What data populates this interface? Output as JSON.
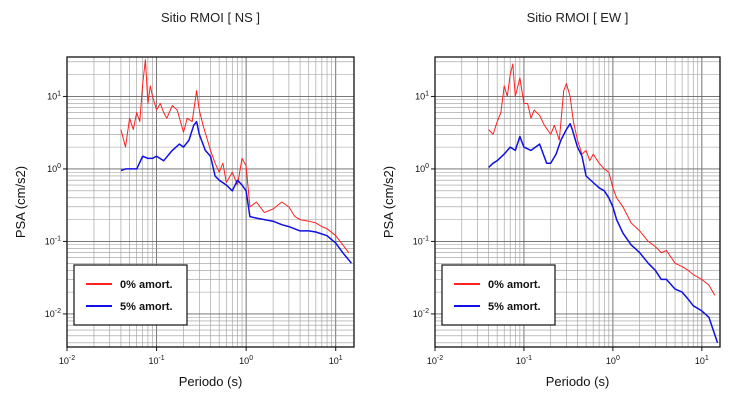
{
  "chart_data": [
    {
      "type": "line",
      "title": "Sitio RMOI [ NS ]",
      "xlabel": "Periodo (s)",
      "ylabel": "PSA (cm/s2)",
      "xscale": "log",
      "yscale": "log",
      "xlim": [
        0.01,
        16
      ],
      "ylim": [
        0.0035,
        35
      ],
      "xticks": [
        {
          "value": 0.01,
          "base": "10",
          "exp": "-2"
        },
        {
          "value": 0.1,
          "base": "10",
          "exp": "-1"
        },
        {
          "value": 1,
          "base": "10",
          "exp": "0"
        },
        {
          "value": 10,
          "base": "10",
          "exp": "1"
        }
      ],
      "yticks": [
        {
          "value": 0.01,
          "base": "10",
          "exp": "-2"
        },
        {
          "value": 0.1,
          "base": "10",
          "exp": "-1"
        },
        {
          "value": 1,
          "base": "10",
          "exp": "0"
        },
        {
          "value": 10,
          "base": "10",
          "exp": "1"
        }
      ],
      "grid": true,
      "legend": "bottom-left",
      "series": [
        {
          "name": "0% amort.",
          "color": "#ff2020",
          "x": [
            0.04,
            0.045,
            0.05,
            0.055,
            0.06,
            0.065,
            0.07,
            0.075,
            0.08,
            0.085,
            0.09,
            0.1,
            0.11,
            0.12,
            0.13,
            0.15,
            0.17,
            0.2,
            0.22,
            0.25,
            0.28,
            0.3,
            0.33,
            0.36,
            0.4,
            0.45,
            0.5,
            0.55,
            0.6,
            0.7,
            0.8,
            0.9,
            1.0,
            1.1,
            1.3,
            1.6,
            2.0,
            2.5,
            3.0,
            3.5,
            4.0,
            5.0,
            6.0,
            7.0,
            8.0,
            10.0,
            12.0,
            14.0
          ],
          "y": [
            3.5,
            2.0,
            5.0,
            3.5,
            6.0,
            4.5,
            15.0,
            32.0,
            8.0,
            14.0,
            10.0,
            6.5,
            8.0,
            6.0,
            5.0,
            7.5,
            6.5,
            3.2,
            5.0,
            4.5,
            12.0,
            6.5,
            4.0,
            2.8,
            1.8,
            1.2,
            0.9,
            1.2,
            0.65,
            0.9,
            0.6,
            1.4,
            1.1,
            0.3,
            0.35,
            0.25,
            0.28,
            0.35,
            0.3,
            0.22,
            0.2,
            0.19,
            0.18,
            0.16,
            0.15,
            0.12,
            0.09,
            0.07
          ]
        },
        {
          "name": "5% amort.",
          "color": "#1010e0",
          "x": [
            0.04,
            0.045,
            0.05,
            0.06,
            0.07,
            0.08,
            0.09,
            0.1,
            0.12,
            0.15,
            0.18,
            0.2,
            0.23,
            0.26,
            0.28,
            0.3,
            0.35,
            0.4,
            0.45,
            0.5,
            0.6,
            0.7,
            0.8,
            0.9,
            1.0,
            1.1,
            1.3,
            1.6,
            2.0,
            2.5,
            3.0,
            4.0,
            5.0,
            6.0,
            8.0,
            10.0,
            12.0,
            15.0
          ],
          "y": [
            0.95,
            1.0,
            1.0,
            1.0,
            1.5,
            1.4,
            1.4,
            1.5,
            1.3,
            1.8,
            2.2,
            2.0,
            2.5,
            4.0,
            4.5,
            3.0,
            1.8,
            1.5,
            0.8,
            0.7,
            0.6,
            0.5,
            0.7,
            0.6,
            0.5,
            0.22,
            0.21,
            0.2,
            0.19,
            0.17,
            0.16,
            0.14,
            0.14,
            0.135,
            0.12,
            0.095,
            0.07,
            0.05
          ]
        }
      ]
    },
    {
      "type": "line",
      "title": "Sitio RMOI [ EW ]",
      "xlabel": "Periodo (s)",
      "ylabel": "PSA (cm/s2)",
      "xscale": "log",
      "yscale": "log",
      "xlim": [
        0.01,
        16
      ],
      "ylim": [
        0.0035,
        35
      ],
      "xticks": [
        {
          "value": 0.01,
          "base": "10",
          "exp": "-2"
        },
        {
          "value": 0.1,
          "base": "10",
          "exp": "-1"
        },
        {
          "value": 1,
          "base": "10",
          "exp": "0"
        },
        {
          "value": 10,
          "base": "10",
          "exp": "1"
        }
      ],
      "yticks": [
        {
          "value": 0.01,
          "base": "10",
          "exp": "-2"
        },
        {
          "value": 0.1,
          "base": "10",
          "exp": "-1"
        },
        {
          "value": 1,
          "base": "10",
          "exp": "0"
        },
        {
          "value": 10,
          "base": "10",
          "exp": "1"
        }
      ],
      "grid": true,
      "legend": "bottom-left",
      "series": [
        {
          "name": "0% amort.",
          "color": "#ff2020",
          "x": [
            0.04,
            0.045,
            0.05,
            0.055,
            0.06,
            0.065,
            0.07,
            0.075,
            0.08,
            0.09,
            0.1,
            0.11,
            0.12,
            0.13,
            0.15,
            0.17,
            0.2,
            0.22,
            0.25,
            0.28,
            0.3,
            0.33,
            0.36,
            0.4,
            0.45,
            0.5,
            0.55,
            0.6,
            0.7,
            0.8,
            0.9,
            1.0,
            1.1,
            1.3,
            1.6,
            2.0,
            2.5,
            3.0,
            3.5,
            4.0,
            5.0,
            6.0,
            7.0,
            8.0,
            10.0,
            12.0,
            14.0
          ],
          "y": [
            3.5,
            3.0,
            4.5,
            6.0,
            14.0,
            10.0,
            20.0,
            28.0,
            10.0,
            18.0,
            8.0,
            8.0,
            5.0,
            6.5,
            5.5,
            4.0,
            3.0,
            4.0,
            2.5,
            12.0,
            15.0,
            10.0,
            4.5,
            2.5,
            1.6,
            1.8,
            1.3,
            1.6,
            1.2,
            1.0,
            0.9,
            0.55,
            0.4,
            0.3,
            0.18,
            0.14,
            0.1,
            0.085,
            0.07,
            0.075,
            0.05,
            0.045,
            0.04,
            0.035,
            0.03,
            0.025,
            0.018
          ]
        },
        {
          "name": "5% amort.",
          "color": "#1010e0",
          "x": [
            0.04,
            0.045,
            0.05,
            0.06,
            0.07,
            0.08,
            0.09,
            0.1,
            0.12,
            0.15,
            0.18,
            0.2,
            0.23,
            0.26,
            0.3,
            0.33,
            0.35,
            0.4,
            0.45,
            0.5,
            0.6,
            0.7,
            0.8,
            0.9,
            1.0,
            1.1,
            1.3,
            1.6,
            2.0,
            2.5,
            3.0,
            3.5,
            4.0,
            5.0,
            6.0,
            7.0,
            8.0,
            10.0,
            12.0,
            15.0
          ],
          "y": [
            1.05,
            1.2,
            1.3,
            1.6,
            2.0,
            1.8,
            2.8,
            2.0,
            1.8,
            2.2,
            1.2,
            1.2,
            1.6,
            2.5,
            3.5,
            4.2,
            3.5,
            2.0,
            1.5,
            0.8,
            0.65,
            0.55,
            0.5,
            0.4,
            0.3,
            0.2,
            0.13,
            0.09,
            0.07,
            0.05,
            0.04,
            0.03,
            0.03,
            0.022,
            0.02,
            0.016,
            0.013,
            0.011,
            0.009,
            0.004
          ]
        }
      ]
    }
  ]
}
